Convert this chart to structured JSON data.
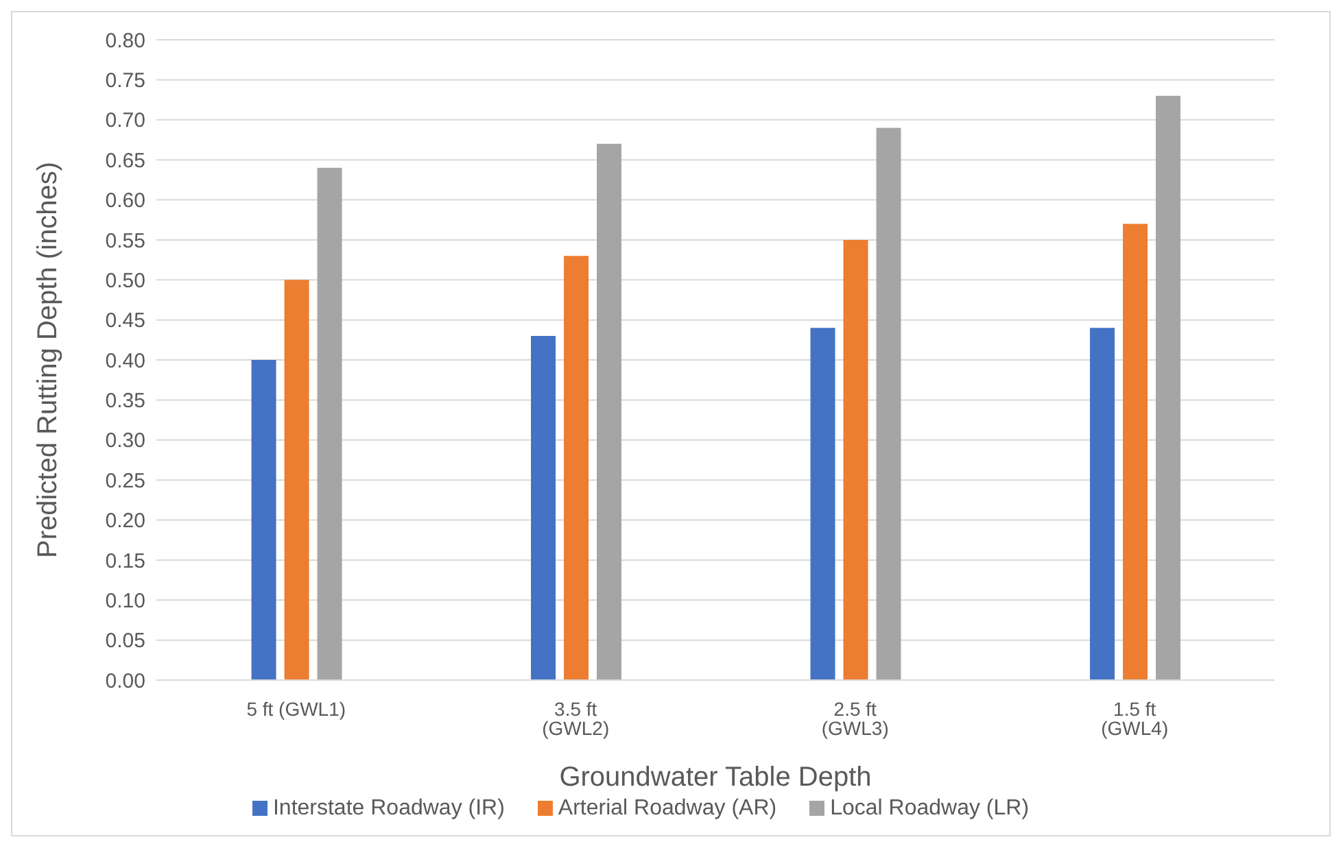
{
  "chart_data": {
    "type": "bar",
    "xlabel": "Groundwater Table Depth",
    "ylabel": "Predicted Rutting Depth (inches)",
    "categories": [
      "5 ft (GWL1)",
      "3.5 ft (GWL2)",
      "2.5 ft (GWL3)",
      "1.5 ft (GWL4)"
    ],
    "series": [
      {
        "name": "Interstate Roadway (IR)",
        "color": "#4472c4",
        "values": [
          0.4,
          0.43,
          0.44,
          0.44
        ]
      },
      {
        "name": "Arterial Roadway (AR)",
        "color": "#ed7d31",
        "values": [
          0.5,
          0.53,
          0.55,
          0.57
        ]
      },
      {
        "name": "Local Roadway (LR)",
        "color": "#a5a5a5",
        "values": [
          0.64,
          0.67,
          0.69,
          0.73
        ]
      }
    ],
    "ylim": [
      0,
      0.8
    ],
    "yticks": [
      {
        "value": 0,
        "label": "0.00"
      },
      {
        "value": 0.05,
        "label": "0.05"
      },
      {
        "value": 0.1,
        "label": "0.10"
      },
      {
        "value": 0.15,
        "label": "0.15"
      },
      {
        "value": 0.2,
        "label": "0.20"
      },
      {
        "value": 0.25,
        "label": "0.25"
      },
      {
        "value": 0.3,
        "label": "0.30"
      },
      {
        "value": 0.35,
        "label": "0.35"
      },
      {
        "value": 0.4,
        "label": "0.40"
      },
      {
        "value": 0.45,
        "label": "0.45"
      },
      {
        "value": 0.5,
        "label": "0.50"
      },
      {
        "value": 0.55,
        "label": "0.55"
      },
      {
        "value": 0.6,
        "label": "0.60"
      },
      {
        "value": 0.65,
        "label": "0.65"
      },
      {
        "value": 0.7,
        "label": "0.70"
      },
      {
        "value": 0.75,
        "label": "0.75"
      },
      {
        "value": 0.8,
        "label": "0.80"
      }
    ],
    "grid": "y",
    "legend": "bottom"
  }
}
